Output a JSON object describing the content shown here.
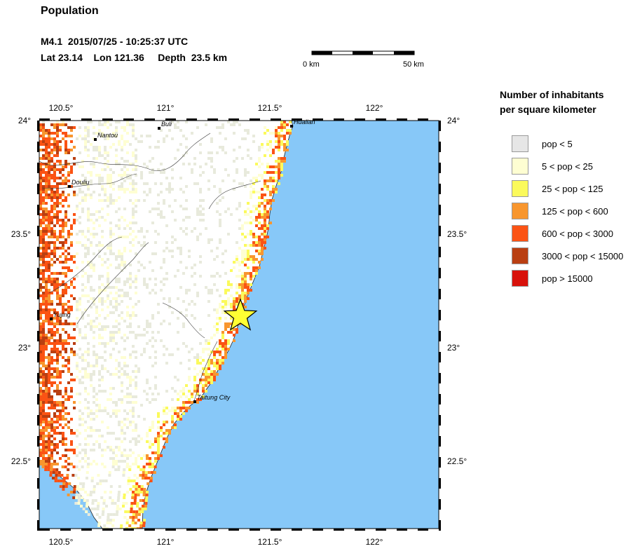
{
  "title": "Population",
  "event": {
    "line1": "M4.1  2015/07/25 - 10:25:37 UTC",
    "line2": "Lat 23.14    Lon 121.36     Depth  23.5 km"
  },
  "scale": {
    "left_label": "0 km",
    "right_label": "50 km"
  },
  "legend": {
    "title_line1": "Number of inhabitants",
    "title_line2": "per square kilometer",
    "items": [
      {
        "label": "pop < 5",
        "color": "#e6e6e6"
      },
      {
        "label": "5 < pop < 25",
        "color": "#fefed2"
      },
      {
        "label": "25 < pop < 125",
        "color": "#fbfa5c"
      },
      {
        "label": "125 < pop < 600",
        "color": "#f8962e"
      },
      {
        "label": "600 < pop < 3000",
        "color": "#fb5314"
      },
      {
        "label": "3000 < pop < 15000",
        "color": "#b93f12"
      },
      {
        "label": "pop > 15000",
        "color": "#d8120b"
      }
    ]
  },
  "map": {
    "top_lon_labels": [
      "120.5°",
      "121°",
      "121.5°",
      "122°"
    ],
    "bottom_lon_labels": [
      "120.5°",
      "121°",
      "121.5°",
      "122°"
    ],
    "left_lat_labels": [
      "24°",
      "23.5°",
      "23°",
      "22.5°"
    ],
    "right_lat_labels": [
      "24°",
      "23.5°",
      "23°",
      "22.5°"
    ],
    "cities": [
      {
        "name": "Nantou"
      },
      {
        "name": "Buli"
      },
      {
        "name": "Hualian"
      },
      {
        "name": "Douliu"
      },
      {
        "name": "Yujing"
      },
      {
        "name": "Taitung City"
      }
    ],
    "epicenter_icon": "star-icon",
    "colors": {
      "ocean": "#87c8f8",
      "land": "#ffffff",
      "frame": "#000000"
    }
  }
}
